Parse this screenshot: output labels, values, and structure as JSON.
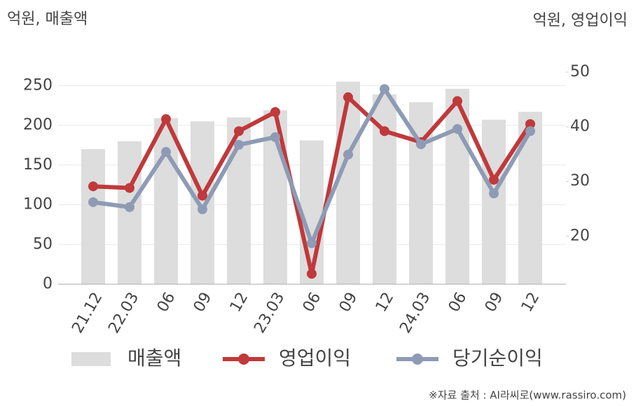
{
  "chart_data": {
    "type": "combo",
    "y_axis_label": "억원, 매출액",
    "y2_axis_label": "억원, 영업이익",
    "source": "※자료 출처 : AI라씨로(www.rassiro.com)",
    "categories": [
      "21.12",
      "22.03",
      "06",
      "09",
      "12",
      "23.03",
      "06",
      "09",
      "12",
      "24.03",
      "06",
      "09",
      "12"
    ],
    "series": [
      {
        "name": "매출액",
        "type": "bar",
        "color": "#dddddd",
        "axis": "y",
        "values": [
          170,
          180,
          209,
          205,
          210,
          219,
          181,
          255,
          239,
          229,
          246,
          207,
          217
        ]
      },
      {
        "name": "영업이익",
        "type": "line",
        "color": "#c0393b",
        "axis": "y2",
        "values": [
          29.1,
          28.8,
          41.4,
          27.4,
          39.2,
          42.7,
          13.1,
          45.4,
          39.2,
          37.2,
          44.7,
          30.3,
          40.5
        ]
      },
      {
        "name": "당기순이익",
        "type": "line",
        "color": "#8e9bb5",
        "axis": "y2",
        "values": [
          26.2,
          25.3,
          35.4,
          24.9,
          36.7,
          38.1,
          18.7,
          34.9,
          46.9,
          36.8,
          39.6,
          27.8,
          39.2
        ]
      }
    ],
    "ylim": [
      0,
      267
    ],
    "yticks": [
      0,
      50,
      100,
      150,
      200,
      250
    ],
    "y2lim": [
      11.2,
      50
    ],
    "y2ticks": [
      20,
      30,
      40,
      50
    ],
    "grid": true,
    "legend": "bottom"
  }
}
